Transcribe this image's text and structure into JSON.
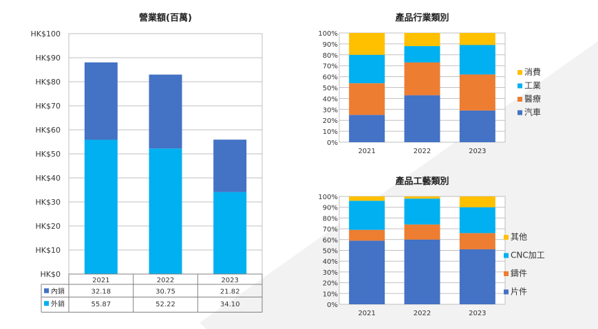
{
  "colors": {
    "domestic": "#4472C4",
    "export": "#00B0F0",
    "auto": "#4472C4",
    "medical": "#ED7D31",
    "industrial": "#00B0F0",
    "consumer": "#FFC000",
    "sheet": "#4472C4",
    "casting": "#ED7D31",
    "cnc": "#00B0F0",
    "other": "#FFC000",
    "grid": "#BFBFBF",
    "axis": "#7F7F7F"
  },
  "chart_data": [
    {
      "type": "bar",
      "stacked": true,
      "title": "營業額(百萬)",
      "categories": [
        "2021",
        "2022",
        "2023"
      ],
      "y_ticks": [
        "HK$0",
        "HK$10",
        "HK$20",
        "HK$30",
        "HK$40",
        "HK$50",
        "HK$60",
        "HK$70",
        "HK$80",
        "HK$90",
        "HK$100"
      ],
      "ylim": [
        0,
        100
      ],
      "grid": true,
      "legend": "data-table",
      "series": [
        {
          "name": "外銷",
          "color_key": "export",
          "values": [
            55.87,
            52.22,
            34.1
          ],
          "labels": [
            "55.87",
            "52.22",
            "34.10"
          ]
        },
        {
          "name": "內銷",
          "color_key": "domestic",
          "values": [
            32.18,
            30.75,
            21.82
          ],
          "labels": [
            "32.18",
            "30.75",
            "21.82"
          ]
        }
      ]
    },
    {
      "type": "bar",
      "stacked": true,
      "percent": true,
      "title": "產品行業類別",
      "categories": [
        "2021",
        "2022",
        "2023"
      ],
      "y_ticks": [
        "0%",
        "10%",
        "20%",
        "30%",
        "40%",
        "50%",
        "60%",
        "70%",
        "80%",
        "90%",
        "100%"
      ],
      "ylim": [
        0,
        100
      ],
      "grid": true,
      "legend": "right",
      "series": [
        {
          "name": "汽車",
          "color_key": "auto",
          "values": [
            25,
            43,
            29
          ]
        },
        {
          "name": "醫療",
          "color_key": "medical",
          "values": [
            29,
            30,
            33
          ]
        },
        {
          "name": "工業",
          "color_key": "industrial",
          "values": [
            26,
            15,
            27
          ]
        },
        {
          "name": "消費",
          "color_key": "consumer",
          "values": [
            20,
            12,
            11
          ]
        }
      ]
    },
    {
      "type": "bar",
      "stacked": true,
      "percent": true,
      "title": "產品工藝類別",
      "categories": [
        "2021",
        "2022",
        "2023"
      ],
      "y_ticks": [
        "0%",
        "10%",
        "20%",
        "30%",
        "40%",
        "50%",
        "60%",
        "70%",
        "80%",
        "90%",
        "100%"
      ],
      "ylim": [
        0,
        100
      ],
      "grid": true,
      "legend": "right",
      "series": [
        {
          "name": "片件",
          "color_key": "sheet",
          "values": [
            59,
            60,
            51
          ]
        },
        {
          "name": "鑄件",
          "color_key": "casting",
          "values": [
            10,
            14,
            15
          ]
        },
        {
          "name": "CNC加工",
          "color_key": "cnc",
          "values": [
            27,
            24,
            24
          ]
        },
        {
          "name": "其他",
          "color_key": "other",
          "values": [
            4,
            2,
            10
          ]
        }
      ]
    }
  ]
}
